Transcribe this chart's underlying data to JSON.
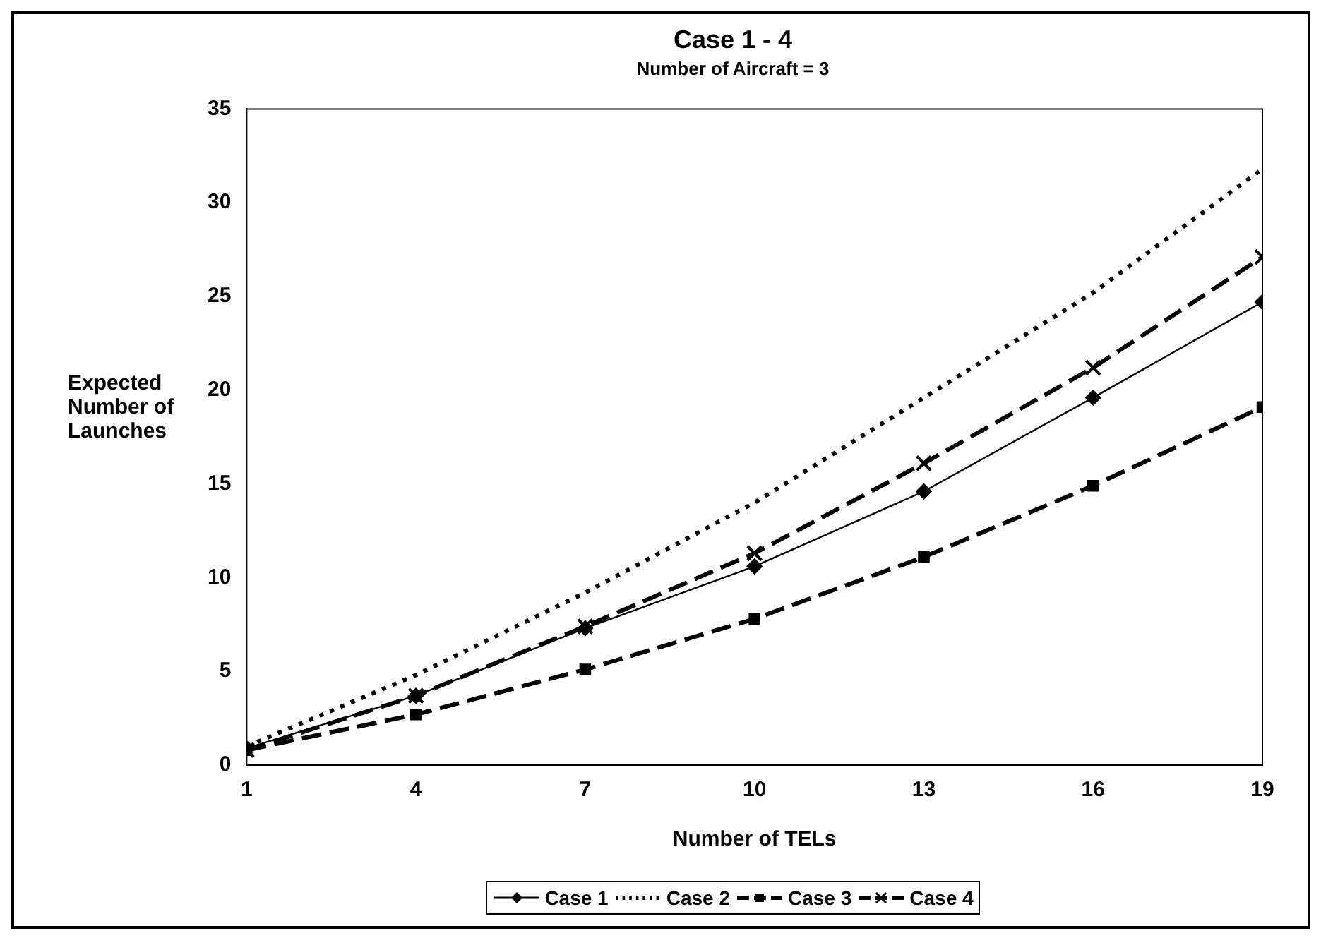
{
  "chart_data": {
    "type": "line",
    "title": "Case 1 - 4",
    "subtitle": "Number of Aircraft = 3",
    "xlabel": "Number of TELs",
    "ylabel": "Expected Number of Launches",
    "x": [
      1,
      4,
      7,
      10,
      13,
      16,
      19
    ],
    "series": [
      {
        "name": "Case 1",
        "color": "#000000",
        "marker": "diamond",
        "line_style": "solid",
        "values": [
          0.9,
          3.7,
          7.3,
          10.6,
          14.6,
          19.6,
          24.7
        ]
      },
      {
        "name": "Case 2",
        "color": "#000000",
        "marker": "none",
        "line_style": "dotted",
        "values": [
          1.0,
          4.8,
          9.2,
          14.0,
          19.6,
          25.2,
          31.8
        ]
      },
      {
        "name": "Case 3",
        "color": "#000000",
        "marker": "square",
        "line_style": "dashed",
        "values": [
          0.8,
          2.7,
          5.1,
          7.8,
          11.1,
          14.9,
          19.1
        ]
      },
      {
        "name": "Case 4",
        "color": "#000000",
        "marker": "cross",
        "line_style": "dashed",
        "values": [
          0.8,
          3.7,
          7.4,
          11.3,
          16.1,
          21.2,
          27.1
        ]
      }
    ],
    "xlim": [
      1,
      19
    ],
    "xticks": [
      1,
      4,
      7,
      10,
      13,
      16,
      19
    ],
    "ylim": [
      0,
      35
    ],
    "yticks": [
      0,
      5,
      10,
      15,
      20,
      25,
      30,
      35
    ],
    "grid": false,
    "legend": "bottom"
  }
}
